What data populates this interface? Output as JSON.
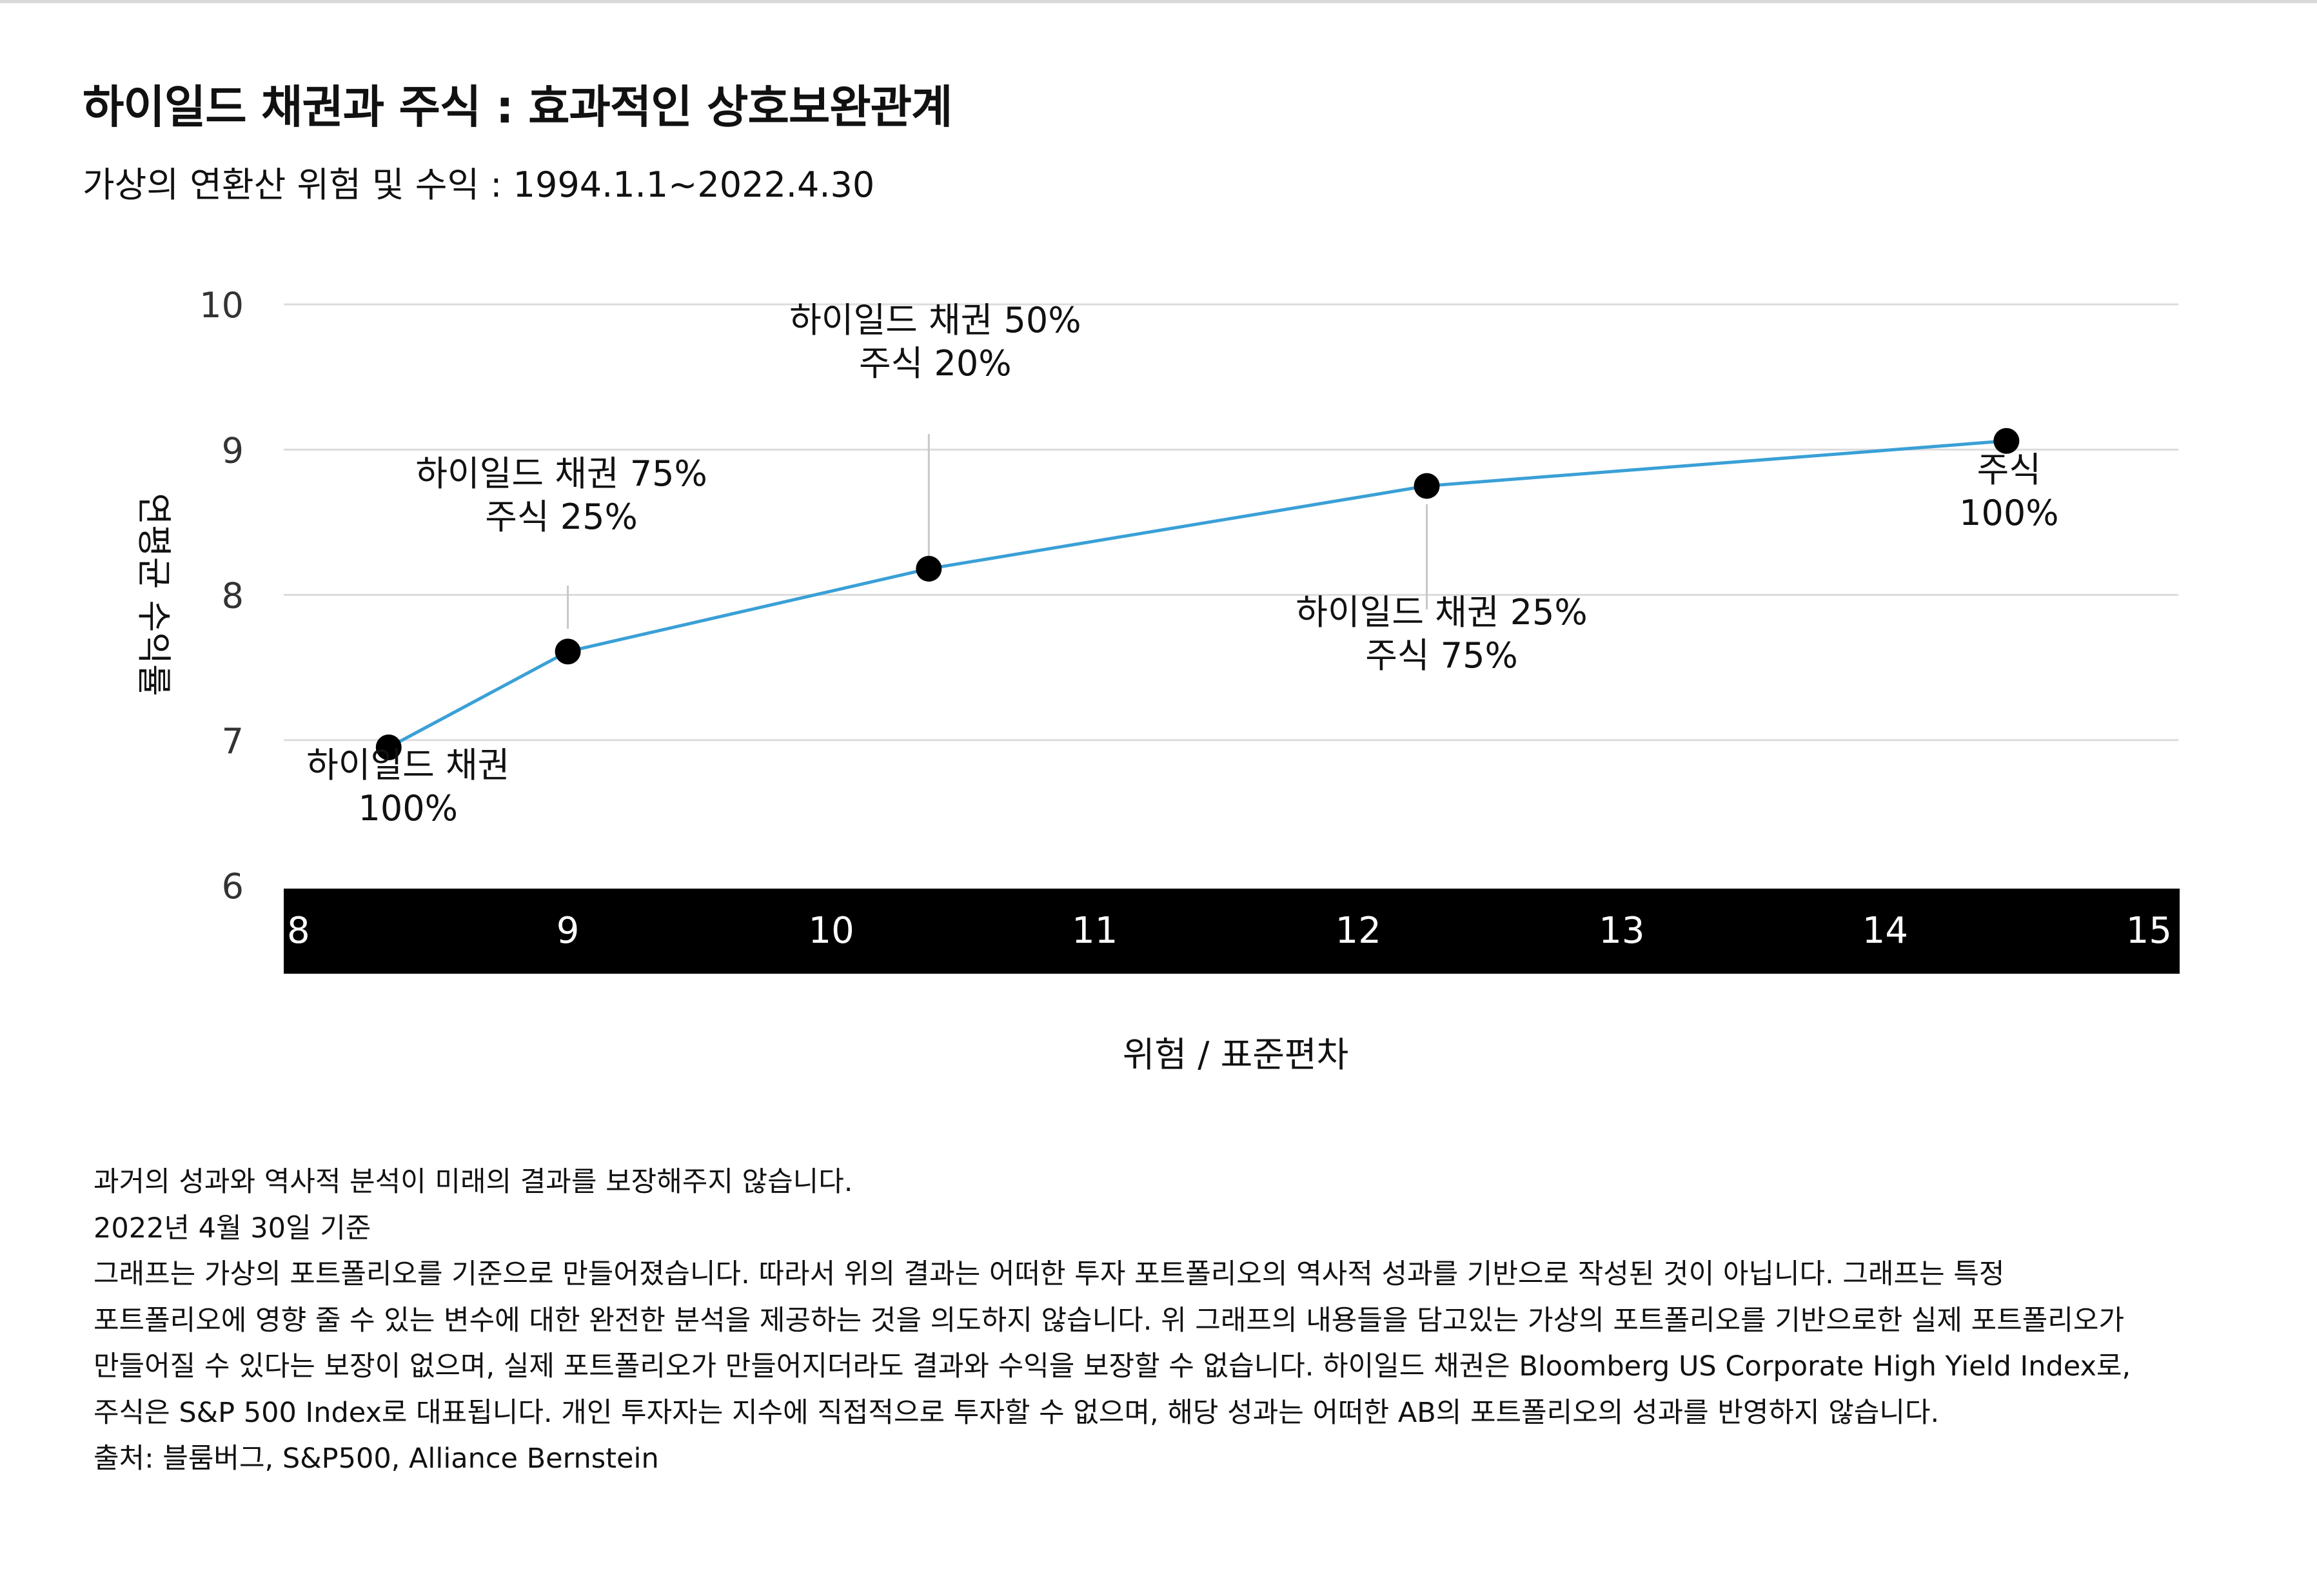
{
  "header": {
    "title": "하이일드 채권과 주식 : 효과적인 상호보완관계",
    "subtitle": "가상의 연환산 위험 및 수익 : 1994.1.1~2022.4.30"
  },
  "chart_data": {
    "type": "line",
    "xlabel": "위험 / 표준편차",
    "ylabel": "연평균 수익률",
    "xlim": [
      8,
      15
    ],
    "ylim": [
      6,
      10
    ],
    "x_ticks": [
      "8",
      "9",
      "10",
      "11",
      "12",
      "13",
      "14",
      "15"
    ],
    "y_ticks": [
      "6",
      "7",
      "8",
      "9",
      "10"
    ],
    "grid": true,
    "line_color": "#3aa0d6",
    "x_axis_band_color": "#000000",
    "points": [
      {
        "x": 8.32,
        "y": 6.95,
        "label": [
          "하이일드 채권",
          "100%"
        ]
      },
      {
        "x": 9.0,
        "y": 7.61,
        "label": [
          "하이일드 채권 75%",
          "주식 25%"
        ]
      },
      {
        "x": 10.37,
        "y": 8.18,
        "label": [
          "하이일드 채권 50%",
          "주식 20%"
        ]
      },
      {
        "x": 12.26,
        "y": 8.75,
        "label": [
          "하이일드 채권 25%",
          "주식 75%"
        ]
      },
      {
        "x": 14.46,
        "y": 9.06,
        "label": [
          "주식",
          "100%"
        ]
      }
    ]
  },
  "notes": [
    "과거의 성과와 역사적 분석이 미래의 결과를 보장해주지 않습니다.",
    "2022년 4월 30일 기준",
    "그래프는 가상의 포트폴리오를 기준으로 만들어졌습니다. 따라서 위의 결과는 어떠한 투자 포트폴리오의 역사적 성과를 기반으로 작성된 것이 아닙니다. 그래프는 특정",
    "포트폴리오에 영향 줄 수 있는 변수에 대한 완전한 분석을 제공하는 것을 의도하지 않습니다. 위 그래프의 내용들을 담고있는 가상의 포트폴리오를 기반으로한 실제 포트폴리오가",
    "만들어질 수 있다는 보장이 없으며, 실제 포트폴리오가 만들어지더라도 결과와 수익을 보장할 수 없습니다. 하이일드 채권은 Bloomberg US Corporate High Yield Index로,",
    "주식은 S&P 500 Index로 대표됩니다. 개인 투자자는 지수에 직접적으로 투자할 수 없으며, 해당 성과는 어떠한 AB의 포트폴리오의 성과를 반영하지 않습니다.",
    "출처: 블룸버그, S&P500, Alliance Bernstein"
  ]
}
